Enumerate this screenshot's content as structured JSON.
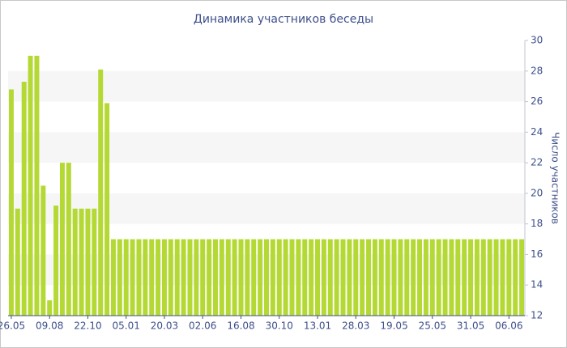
{
  "chart_data": {
    "type": "bar",
    "title": "Динамика участников беседы",
    "y_axis_label": "Число участников",
    "categories": [
      "26.05",
      null,
      null,
      null,
      null,
      null,
      "09.08",
      null,
      null,
      null,
      null,
      null,
      "22.10",
      null,
      null,
      null,
      null,
      null,
      "05.01",
      null,
      null,
      null,
      null,
      null,
      "20.03",
      null,
      null,
      null,
      null,
      null,
      "02.06",
      null,
      null,
      null,
      null,
      null,
      "16.08",
      null,
      null,
      null,
      null,
      null,
      "30.10",
      null,
      null,
      null,
      null,
      null,
      "13.01",
      null,
      null,
      null,
      null,
      null,
      "28.03",
      null,
      null,
      null,
      null,
      null,
      "19.05",
      null,
      null,
      null,
      null,
      null,
      "25.05",
      null,
      null,
      null,
      null,
      null,
      "31.05",
      null,
      null,
      null,
      null,
      null,
      "06.06",
      null,
      null
    ],
    "values": [
      26.8,
      19,
      27.3,
      29,
      29,
      20.5,
      13,
      19.2,
      22,
      22,
      19,
      19,
      19,
      19,
      28.1,
      25.9,
      17,
      17,
      17,
      17,
      17,
      17,
      17,
      17,
      17,
      17,
      17,
      17,
      17,
      17,
      17,
      17,
      17,
      17,
      17,
      17,
      17,
      17,
      17,
      17,
      17,
      17,
      17,
      17,
      17,
      17,
      17,
      17,
      17,
      17,
      17,
      17,
      17,
      17,
      17,
      17,
      17,
      17,
      17,
      17,
      17,
      17,
      17,
      17,
      17,
      17,
      17,
      17,
      17,
      17,
      17,
      17,
      17,
      17,
      17,
      17,
      17,
      17,
      17,
      17,
      17
    ],
    "color": "#b5d934",
    "ylim": [
      12,
      30
    ],
    "yticks": [
      12,
      14,
      16,
      18,
      20,
      22,
      24,
      26,
      28,
      30
    ],
    "grid": "bands",
    "y_axis_side": "right"
  }
}
